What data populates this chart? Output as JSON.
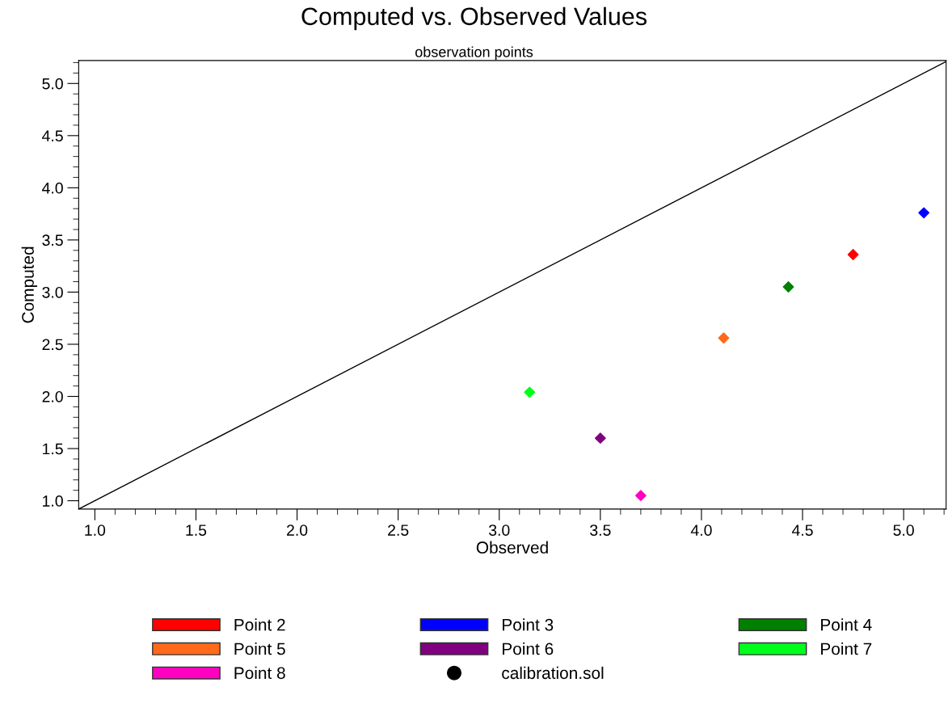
{
  "chart_data": {
    "type": "scatter",
    "title": "Computed vs. Observed Values",
    "subtitle": "observation points",
    "xlabel": "Observed",
    "ylabel": "Computed",
    "xlim": [
      0.92,
      5.21
    ],
    "ylim": [
      0.92,
      5.22
    ],
    "xticks": [
      {
        "value": 1.0,
        "label": "1.0"
      },
      1.5,
      {
        "value": 2.0,
        "label": "2.0"
      },
      2.5,
      {
        "value": 3.0,
        "label": "3.0"
      },
      3.5,
      {
        "value": 4.0,
        "label": "4.0"
      },
      4.5,
      {
        "value": 5.0,
        "label": "5.0"
      }
    ],
    "yticks": [
      {
        "value": 1.0,
        "label": "1.0"
      },
      1.5,
      {
        "value": 2.0,
        "label": "2.0"
      },
      2.5,
      {
        "value": 3.0,
        "label": "3.0"
      },
      3.5,
      {
        "value": 4.0,
        "label": "4.0"
      },
      4.5,
      {
        "value": 5.0,
        "label": "5.0"
      }
    ],
    "marker": "diamond",
    "grid": false,
    "legend": "bottom",
    "series": [
      {
        "type": "line",
        "marker": "none",
        "color": "#000000",
        "x": [
          0.92,
          5.21
        ],
        "values": [
          0.92,
          5.21
        ]
      },
      {
        "name": "Point 2",
        "color": "#ff0000",
        "x": [
          4.75
        ],
        "values": [
          3.36
        ]
      },
      {
        "name": "Point 3",
        "color": "#0000ff",
        "x": [
          5.1
        ],
        "values": [
          3.76
        ]
      },
      {
        "name": "Point 4",
        "color": "#008000",
        "x": [
          4.43
        ],
        "values": [
          3.05
        ]
      },
      {
        "name": "Point 5",
        "color": "#ff6a1a",
        "x": [
          4.11
        ],
        "values": [
          2.56
        ]
      },
      {
        "name": "Point 6",
        "color": "#800080",
        "x": [
          3.5
        ],
        "values": [
          1.6
        ]
      },
      {
        "name": "Point 7",
        "color": "#00ff1a",
        "x": [
          3.15
        ],
        "values": [
          2.04
        ]
      },
      {
        "name": "Point 8",
        "color": "#ff00c0",
        "x": [
          3.7
        ],
        "values": [
          1.05
        ]
      }
    ],
    "annotations": [
      "calibration.sol"
    ]
  }
}
